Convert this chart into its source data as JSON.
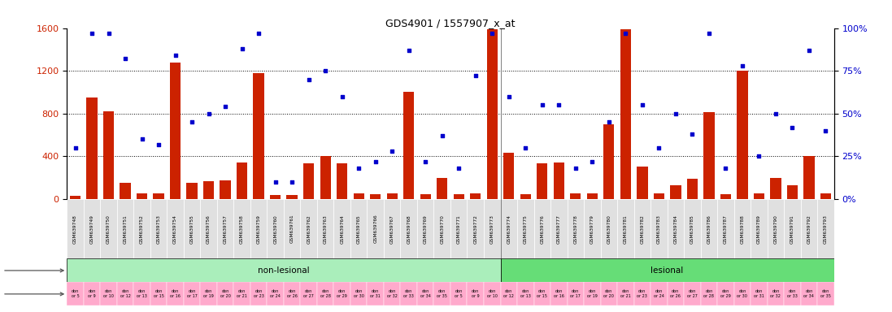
{
  "title": "GDS4901 / 1557907_x_at",
  "samples": [
    "GSM639748",
    "GSM639749",
    "GSM639750",
    "GSM639751",
    "GSM639752",
    "GSM639753",
    "GSM639754",
    "GSM639755",
    "GSM639756",
    "GSM639757",
    "GSM639758",
    "GSM639759",
    "GSM639760",
    "GSM639761",
    "GSM639762",
    "GSM639763",
    "GSM639764",
    "GSM639765",
    "GSM639766",
    "GSM639767",
    "GSM639768",
    "GSM639769",
    "GSM639770",
    "GSM639771",
    "GSM639772",
    "GSM639773",
    "GSM639774",
    "GSM639775",
    "GSM639776",
    "GSM639777",
    "GSM639778",
    "GSM639779",
    "GSM639780",
    "GSM639781",
    "GSM639782",
    "GSM639783",
    "GSM639784",
    "GSM639785",
    "GSM639786",
    "GSM639787",
    "GSM639788",
    "GSM639789",
    "GSM639790",
    "GSM639791",
    "GSM639792",
    "GSM639793"
  ],
  "counts": [
    30,
    950,
    820,
    150,
    50,
    50,
    1280,
    150,
    165,
    175,
    340,
    1180,
    40,
    40,
    330,
    400,
    330,
    50,
    45,
    55,
    1000,
    45,
    200,
    45,
    55,
    1590,
    430,
    45,
    330,
    340,
    50,
    55,
    700,
    1590,
    300,
    50,
    130,
    190,
    810,
    45,
    1200,
    50,
    200,
    130,
    400,
    55
  ],
  "percentiles": [
    30,
    97,
    97,
    82,
    35,
    32,
    84,
    45,
    50,
    54,
    88,
    97,
    10,
    10,
    70,
    75,
    60,
    18,
    22,
    28,
    87,
    22,
    37,
    18,
    72,
    97,
    60,
    30,
    55,
    55,
    18,
    22,
    45,
    97,
    55,
    30,
    50,
    38,
    97,
    18,
    78,
    25,
    50,
    42,
    87,
    40
  ],
  "nonlesional_count": 26,
  "lesional_count": 20,
  "ylim_left": [
    0,
    1600
  ],
  "ylim_right": [
    0,
    100
  ],
  "yticks_left": [
    0,
    400,
    800,
    1200,
    1600
  ],
  "yticks_right": [
    0,
    25,
    50,
    75,
    100
  ],
  "bar_color": "#cc2200",
  "scatter_color": "#0000cc",
  "nonlesional_color": "#aaeebb",
  "lesional_color": "#66dd77",
  "individual_color": "#ffaacc",
  "title_color": "black",
  "left_label_color": "#cc2200",
  "right_label_color": "#0000cc",
  "individuals": [
    "don\nor 5",
    "don\nor 9",
    "don\nor 10",
    "don\nor 12",
    "don\nor 13",
    "don\nor 15",
    "don\nor 16",
    "don\nor 17",
    "don\nor 19",
    "don\nor 20",
    "don\nor 21",
    "don\nor 23",
    "don\nor 24",
    "don\nor 26",
    "don\nor 27",
    "don\nor 28",
    "don\nor 29",
    "don\nor 30",
    "don\nor 31",
    "don\nor 32",
    "don\nor 33",
    "don\nor 34",
    "don\nor 35",
    "don\nor 5",
    "don\nor 9",
    "don\nor 10",
    "don\nor 12",
    "don\nor 13",
    "don\nor 15",
    "don\nor 16",
    "don\nor 17",
    "don\nor 19",
    "don\nor 20",
    "don\nor 21",
    "don\nor 23",
    "don\nor 24",
    "don\nor 26",
    "don\nor 27",
    "don\nor 28",
    "don\nor 29",
    "don\nor 30",
    "don\nor 31",
    "don\nor 32",
    "don\nor 33",
    "don\nor 34",
    "don\nor 35"
  ]
}
